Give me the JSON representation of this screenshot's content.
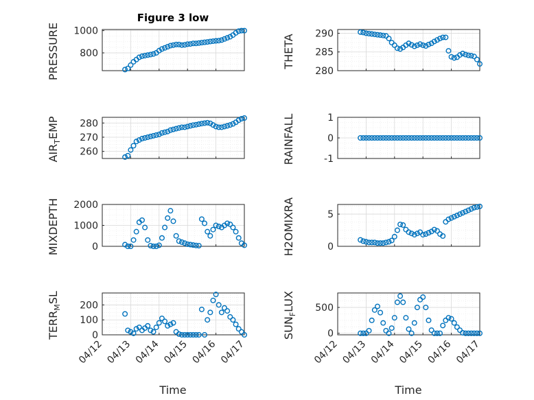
{
  "figure_title": "Figure 3 low",
  "x_axis": {
    "label": "Time",
    "range": [
      "04/12",
      "04/17"
    ],
    "tick_labels": [
      "04/12",
      "04/13",
      "04/14",
      "04/15",
      "04/16",
      "04/17"
    ]
  },
  "colors": {
    "marker": "#0072BD",
    "axis": "#262626",
    "grid": "#d9d9d9"
  },
  "chart_data": [
    {
      "type": "scatter",
      "title": "Figure 3 low",
      "ylabel": "PRESSURE",
      "xlabel": "",
      "ylim": [
        640,
        1010
      ],
      "yticks": [
        800,
        1000
      ],
      "grid": true,
      "x": [
        0.8,
        0.9,
        1.0,
        1.1,
        1.2,
        1.3,
        1.4,
        1.5,
        1.6,
        1.7,
        1.8,
        1.9,
        2.0,
        2.1,
        2.2,
        2.3,
        2.4,
        2.5,
        2.6,
        2.7,
        2.8,
        2.9,
        3.0,
        3.1,
        3.2,
        3.3,
        3.4,
        3.5,
        3.6,
        3.7,
        3.8,
        3.9,
        4.0,
        4.1,
        4.2,
        4.3,
        4.4,
        4.5,
        4.6,
        4.7,
        4.8,
        4.9,
        5.0
      ],
      "y": [
        650,
        660,
        690,
        720,
        740,
        760,
        770,
        775,
        780,
        785,
        790,
        800,
        820,
        835,
        845,
        855,
        865,
        870,
        875,
        875,
        870,
        872,
        878,
        880,
        885,
        885,
        888,
        892,
        895,
        898,
        902,
        905,
        908,
        910,
        915,
        925,
        935,
        945,
        960,
        980,
        995,
        1000,
        1000
      ]
    },
    {
      "type": "scatter",
      "ylabel": "THETA",
      "xlabel": "",
      "ylim": [
        280,
        291
      ],
      "yticks": [
        280,
        285,
        290
      ],
      "grid": true,
      "x": [
        0.8,
        0.9,
        1.0,
        1.1,
        1.2,
        1.3,
        1.4,
        1.5,
        1.6,
        1.7,
        1.8,
        1.9,
        2.0,
        2.1,
        2.2,
        2.3,
        2.4,
        2.5,
        2.6,
        2.7,
        2.8,
        2.9,
        3.0,
        3.1,
        3.2,
        3.3,
        3.4,
        3.5,
        3.6,
        3.7,
        3.8,
        3.9,
        4.0,
        4.1,
        4.2,
        4.3,
        4.4,
        4.5,
        4.6,
        4.7,
        4.8,
        4.9,
        5.0
      ],
      "y": [
        290.3,
        290.2,
        290.0,
        289.9,
        289.8,
        289.7,
        289.6,
        289.5,
        289.4,
        289.3,
        288.6,
        287.5,
        286.8,
        286.0,
        285.8,
        286.2,
        286.8,
        287.3,
        286.9,
        286.5,
        286.8,
        287.1,
        286.8,
        286.6,
        287.0,
        287.3,
        287.8,
        288.2,
        288.6,
        288.9,
        288.9,
        285.3,
        283.7,
        283.4,
        283.6,
        284.2,
        284.6,
        284.3,
        284.1,
        284.0,
        283.8,
        283.0,
        281.8
      ]
    },
    {
      "type": "scatter",
      "ylabel": "AIR_TEMP",
      "xlabel": "",
      "ylim": [
        255,
        284
      ],
      "yticks": [
        260,
        270,
        280
      ],
      "grid": true,
      "x": [
        0.8,
        0.9,
        1.0,
        1.1,
        1.2,
        1.3,
        1.4,
        1.5,
        1.6,
        1.7,
        1.8,
        1.9,
        2.0,
        2.1,
        2.2,
        2.3,
        2.4,
        2.5,
        2.6,
        2.7,
        2.8,
        2.9,
        3.0,
        3.1,
        3.2,
        3.3,
        3.4,
        3.5,
        3.6,
        3.7,
        3.8,
        3.9,
        4.0,
        4.1,
        4.2,
        4.3,
        4.4,
        4.5,
        4.6,
        4.7,
        4.8,
        4.9,
        5.0
      ],
      "y": [
        256,
        257,
        261,
        264,
        267,
        268,
        269,
        269.5,
        270,
        270.5,
        271,
        271.5,
        272,
        273,
        273.5,
        274,
        275,
        275.5,
        276,
        276.5,
        277,
        277,
        277.5,
        278,
        278.5,
        278.8,
        279.2,
        279.6,
        279.9,
        280.2,
        279.8,
        278.6,
        277.5,
        277,
        277,
        277.5,
        278,
        278.6,
        279.4,
        280.5,
        282,
        283,
        283.5
      ]
    },
    {
      "type": "scatter",
      "ylabel": "RAINFALL",
      "xlabel": "",
      "ylim": [
        -1,
        1
      ],
      "yticks": [
        -1,
        0,
        1
      ],
      "grid": true,
      "x": [
        0.8,
        0.9,
        1.0,
        1.1,
        1.2,
        1.3,
        1.4,
        1.5,
        1.6,
        1.7,
        1.8,
        1.9,
        2.0,
        2.1,
        2.2,
        2.3,
        2.4,
        2.5,
        2.6,
        2.7,
        2.8,
        2.9,
        3.0,
        3.1,
        3.2,
        3.3,
        3.4,
        3.5,
        3.6,
        3.7,
        3.8,
        3.9,
        4.0,
        4.1,
        4.2,
        4.3,
        4.4,
        4.5,
        4.6,
        4.7,
        4.8,
        4.9,
        5.0
      ],
      "y": [
        0,
        0,
        0,
        0,
        0,
        0,
        0,
        0,
        0,
        0,
        0,
        0,
        0,
        0,
        0,
        0,
        0,
        0,
        0,
        0,
        0,
        0,
        0,
        0,
        0,
        0,
        0,
        0,
        0,
        0,
        0,
        0,
        0,
        0,
        0,
        0,
        0,
        0,
        0,
        0,
        0,
        0,
        0
      ]
    },
    {
      "type": "scatter",
      "ylabel": "MIXDEPTH",
      "xlabel": "",
      "ylim": [
        0,
        2000
      ],
      "yticks": [
        0,
        1000,
        2000
      ],
      "grid": true,
      "x": [
        0.8,
        0.9,
        1.0,
        1.1,
        1.2,
        1.3,
        1.4,
        1.5,
        1.6,
        1.7,
        1.8,
        1.9,
        2.0,
        2.1,
        2.2,
        2.3,
        2.4,
        2.5,
        2.6,
        2.7,
        2.8,
        2.9,
        3.0,
        3.1,
        3.2,
        3.3,
        3.4,
        3.5,
        3.6,
        3.7,
        3.8,
        3.9,
        4.0,
        4.1,
        4.2,
        4.3,
        4.4,
        4.5,
        4.6,
        4.7,
        4.8,
        4.9,
        5.0
      ],
      "y": [
        80,
        0,
        0,
        300,
        700,
        1150,
        1250,
        900,
        300,
        30,
        0,
        0,
        50,
        400,
        900,
        1350,
        1700,
        1200,
        500,
        250,
        200,
        150,
        100,
        80,
        60,
        40,
        30,
        1300,
        1100,
        700,
        500,
        800,
        1000,
        950,
        900,
        1000,
        1100,
        1050,
        900,
        700,
        400,
        150,
        50
      ]
    },
    {
      "type": "scatter",
      "ylabel": "H2OMIXRA",
      "xlabel": "",
      "ylim": [
        0,
        6.5
      ],
      "yticks": [
        0,
        5
      ],
      "grid": true,
      "x": [
        0.8,
        0.9,
        1.0,
        1.1,
        1.2,
        1.3,
        1.4,
        1.5,
        1.6,
        1.7,
        1.8,
        1.9,
        2.0,
        2.1,
        2.2,
        2.3,
        2.4,
        2.5,
        2.6,
        2.7,
        2.8,
        2.9,
        3.0,
        3.1,
        3.2,
        3.3,
        3.4,
        3.5,
        3.6,
        3.7,
        3.8,
        3.9,
        4.0,
        4.1,
        4.2,
        4.3,
        4.4,
        4.5,
        4.6,
        4.7,
        4.8,
        4.9,
        5.0
      ],
      "y": [
        1.0,
        0.8,
        0.7,
        0.6,
        0.6,
        0.6,
        0.5,
        0.5,
        0.5,
        0.6,
        0.7,
        0.9,
        1.5,
        2.5,
        3.4,
        3.3,
        2.6,
        2.2,
        2.0,
        1.8,
        2.0,
        2.2,
        1.8,
        1.9,
        2.1,
        2.3,
        2.6,
        2.4,
        1.9,
        1.6,
        3.8,
        4.2,
        4.4,
        4.6,
        4.8,
        5.0,
        5.2,
        5.4,
        5.6,
        5.8,
        6.0,
        6.1,
        6.2
      ]
    },
    {
      "type": "scatter",
      "ylabel": "TERR_MSL",
      "xlabel": "Time",
      "ylim": [
        0,
        280
      ],
      "yticks": [
        0,
        100,
        200
      ],
      "grid": true,
      "x": [
        0.8,
        0.9,
        1.0,
        1.1,
        1.2,
        1.3,
        1.4,
        1.5,
        1.6,
        1.7,
        1.8,
        1.9,
        2.0,
        2.1,
        2.2,
        2.3,
        2.4,
        2.5,
        2.6,
        2.7,
        2.8,
        2.9,
        3.0,
        3.1,
        3.2,
        3.3,
        3.4,
        3.5,
        3.6,
        3.7,
        3.8,
        3.9,
        4.0,
        4.1,
        4.2,
        4.3,
        4.4,
        4.5,
        4.6,
        4.7,
        4.8,
        4.9,
        5.0
      ],
      "y": [
        140,
        30,
        20,
        10,
        40,
        50,
        30,
        45,
        60,
        30,
        20,
        50,
        80,
        110,
        90,
        60,
        70,
        80,
        20,
        5,
        0,
        0,
        0,
        0,
        0,
        0,
        0,
        170,
        0,
        100,
        150,
        230,
        270,
        200,
        150,
        180,
        160,
        120,
        100,
        70,
        40,
        20,
        0
      ]
    },
    {
      "type": "scatter",
      "ylabel": "SUN_FLUX",
      "xlabel": "Time",
      "ylim": [
        -30,
        780
      ],
      "yticks": [
        0,
        500
      ],
      "grid": true,
      "x": [
        0.8,
        0.9,
        1.0,
        1.1,
        1.2,
        1.3,
        1.4,
        1.5,
        1.6,
        1.7,
        1.8,
        1.9,
        2.0,
        2.1,
        2.2,
        2.3,
        2.4,
        2.5,
        2.6,
        2.7,
        2.8,
        2.9,
        3.0,
        3.1,
        3.2,
        3.3,
        3.4,
        3.5,
        3.6,
        3.7,
        3.8,
        3.9,
        4.0,
        4.1,
        4.2,
        4.3,
        4.4,
        4.5,
        4.6,
        4.7,
        4.8,
        4.9,
        5.0
      ],
      "y": [
        0,
        0,
        0,
        50,
        250,
        450,
        520,
        400,
        200,
        50,
        0,
        100,
        300,
        600,
        720,
        600,
        300,
        80,
        0,
        200,
        500,
        650,
        700,
        500,
        250,
        60,
        0,
        0,
        0,
        150,
        250,
        300,
        280,
        200,
        120,
        60,
        10,
        0,
        0,
        0,
        0,
        0,
        0
      ]
    }
  ]
}
